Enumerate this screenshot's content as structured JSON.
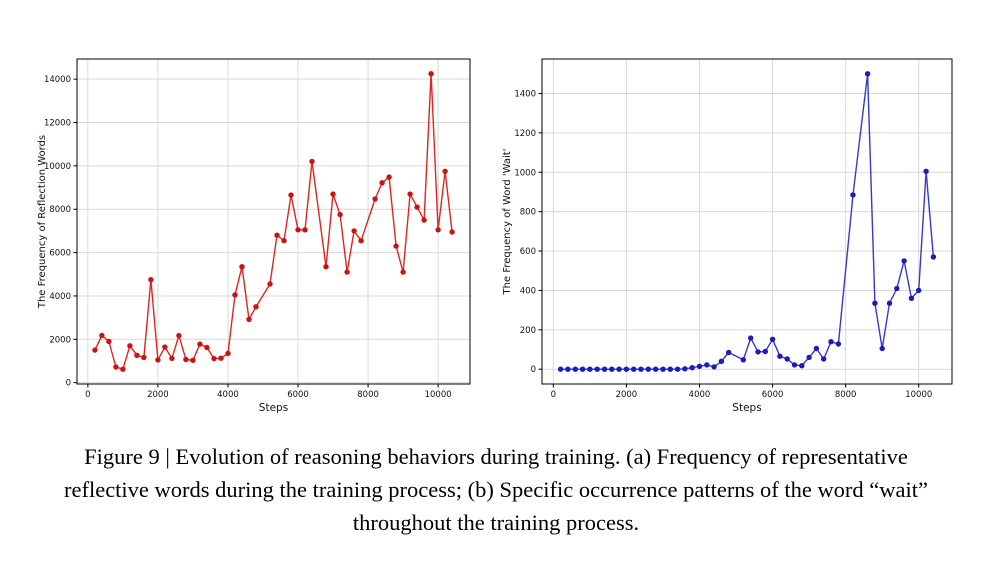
{
  "page": {
    "background": "#ffffff"
  },
  "caption": {
    "lines": [
      "Figure 9 | Evolution of reasoning behaviors during training. (a) Frequency of representative",
      "reflective words during the training process; (b) Specific occurrence patterns of the word “wait”",
      "throughout the training process."
    ]
  },
  "chart_data": [
    {
      "type": "line",
      "panel": "a",
      "title": "",
      "xlabel": "Steps",
      "ylabel": "The Frequency of Reflection Words",
      "line_color": "#e02420",
      "marker_color": "#c81512",
      "marker": "o",
      "grid": true,
      "grid_color": "#d9d9d9",
      "legend": "none",
      "xlim": [
        -310,
        10910
      ],
      "ylim": [
        -62,
        14930
      ],
      "xticks": [
        0,
        2000,
        4000,
        6000,
        8000,
        10000
      ],
      "yticks": [
        0,
        2000,
        4000,
        6000,
        8000,
        10000,
        12000,
        14000
      ],
      "x": [
        200,
        400,
        600,
        800,
        1000,
        1200,
        1400,
        1600,
        1800,
        2000,
        2200,
        2400,
        2600,
        2800,
        3000,
        3200,
        3400,
        3600,
        3800,
        4000,
        4200,
        4400,
        4600,
        4800,
        5200,
        5400,
        5600,
        5800,
        6000,
        6200,
        6400,
        6800,
        7000,
        7200,
        7400,
        7600,
        7800,
        8200,
        8400,
        8600,
        8800,
        9000,
        9200,
        9400,
        9600,
        9800,
        10000,
        10200,
        10400
      ],
      "y": [
        1500,
        2180,
        1900,
        720,
        620,
        1700,
        1260,
        1160,
        4750,
        1050,
        1640,
        1120,
        2170,
        1070,
        1030,
        1780,
        1620,
        1110,
        1130,
        1350,
        4050,
        5350,
        2920,
        3500,
        4550,
        6800,
        6550,
        8650,
        7050,
        7050,
        10200,
        5350,
        8700,
        7750,
        5100,
        7000,
        6550,
        8470,
        9220,
        9480,
        6300,
        5100,
        8700,
        8100,
        7500,
        14250,
        7050,
        9750,
        6950
      ]
    },
    {
      "type": "line",
      "panel": "b",
      "title": "",
      "xlabel": "Steps",
      "ylabel": "The Frequency of Word 'Wait'",
      "line_color": "#3638d0",
      "marker_color": "#1c1db8",
      "marker": "o",
      "grid": true,
      "grid_color": "#d9d9d9",
      "legend": "none",
      "xlim": [
        -310,
        10910
      ],
      "ylim": [
        -75,
        1575
      ],
      "xticks": [
        0,
        2000,
        4000,
        6000,
        8000,
        10000
      ],
      "yticks": [
        0,
        200,
        400,
        600,
        800,
        1000,
        1200,
        1400
      ],
      "x": [
        200,
        400,
        600,
        800,
        1000,
        1200,
        1400,
        1600,
        1800,
        2000,
        2200,
        2400,
        2600,
        2800,
        3000,
        3200,
        3400,
        3600,
        3800,
        4000,
        4200,
        4400,
        4600,
        4800,
        5200,
        5400,
        5600,
        5800,
        6000,
        6200,
        6400,
        6600,
        6800,
        7000,
        7200,
        7400,
        7600,
        7800,
        8200,
        8600,
        8800,
        9000,
        9200,
        9400,
        9600,
        9800,
        10000,
        10200,
        10400
      ],
      "y": [
        0,
        0,
        0,
        0,
        0,
        0,
        0,
        0,
        0,
        0,
        0,
        0,
        0,
        0,
        0,
        0,
        0,
        2,
        8,
        15,
        22,
        12,
        40,
        85,
        48,
        158,
        88,
        90,
        152,
        66,
        52,
        22,
        18,
        60,
        105,
        52,
        140,
        128,
        885,
        1500,
        335,
        105,
        335,
        410,
        550,
        360,
        400,
        1005,
        570
      ]
    }
  ]
}
